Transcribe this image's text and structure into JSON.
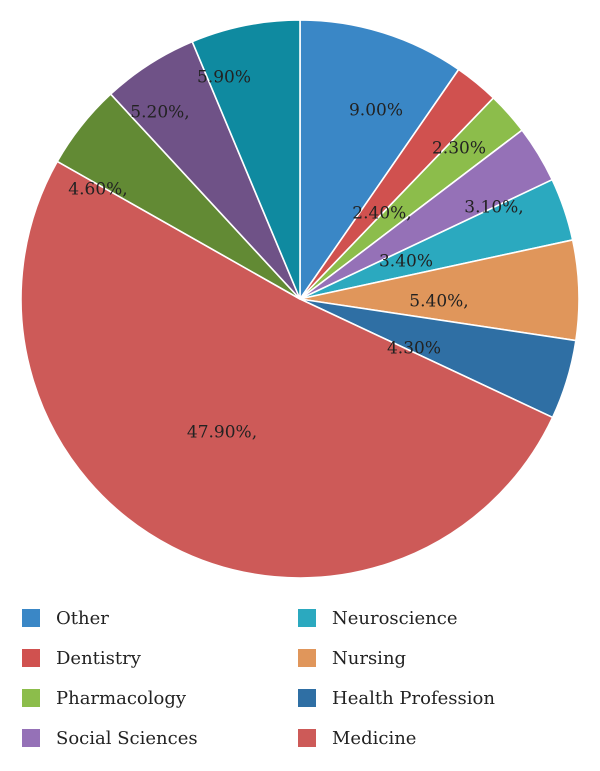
{
  "chart_data": {
    "type": "pie",
    "title": "",
    "slices": [
      {
        "label": "",
        "value": 9.0,
        "display": "9.00%",
        "color": "#3a87c6"
      },
      {
        "label": "",
        "value": 2.4,
        "display": "2.40%,",
        "color": "#d0514f"
      },
      {
        "label": "",
        "value": 2.3,
        "display": "2.30%",
        "color": "#8cbd4b"
      },
      {
        "label": "",
        "value": 3.1,
        "display": "3.10%,",
        "color": "#9571b7"
      },
      {
        "label": "",
        "value": 3.4,
        "display": "3.40%",
        "color": "#2ba9bf"
      },
      {
        "label": "",
        "value": 5.4,
        "display": "5.40%,",
        "color": "#e0965b"
      },
      {
        "label": "",
        "value": 4.3,
        "display": "4.30%",
        "color": "#2f6fa4"
      },
      {
        "label": "",
        "value": 47.9,
        "display": "47.90%,",
        "color": "#cd5a58"
      },
      {
        "label": "",
        "value": 4.6,
        "display": "4.60%,",
        "color": "#628a34"
      },
      {
        "label": "",
        "value": 5.2,
        "display": "5.20%,",
        "color": "#6f5287"
      },
      {
        "label": "",
        "value": 5.9,
        "display": "5.90%",
        "color": "#0f8aa0"
      }
    ],
    "legend": [
      {
        "label": "Other",
        "color": "#3a87c6"
      },
      {
        "label": "Dentistry",
        "color": "#d0514f"
      },
      {
        "label": "Pharmacology",
        "color": "#8cbd4b"
      },
      {
        "label": "Social Sciences",
        "color": "#9571b7"
      },
      {
        "label": "Neuroscience",
        "color": "#2ba9bf"
      },
      {
        "label": "Nursing",
        "color": "#e0965b"
      },
      {
        "label": "Health Profession",
        "color": "#2f6fa4"
      },
      {
        "label": "Medicine",
        "color": "#cd5a58"
      }
    ],
    "legend_placement": "bottom"
  }
}
